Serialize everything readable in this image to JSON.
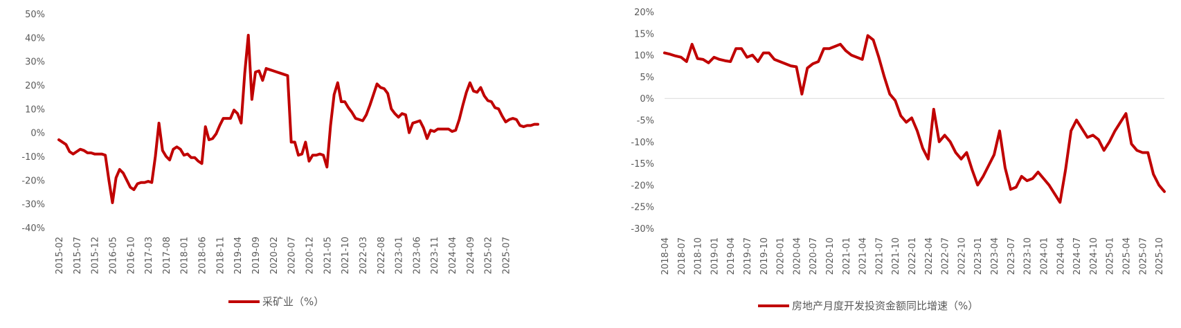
{
  "chart_data": [
    {
      "type": "line",
      "title": "",
      "xlabel": "",
      "ylabel": "",
      "ylim": [
        -40,
        50
      ],
      "ytick_labels": [
        "50%",
        "40%",
        "30%",
        "20%",
        "10%",
        "0%",
        "-10%",
        "-20%",
        "-30%",
        "-40%"
      ],
      "yticks": [
        50,
        40,
        30,
        20,
        10,
        0,
        -10,
        -20,
        -30,
        -40
      ],
      "xtick_labels": [
        "2015-02",
        "2015-07",
        "2015-12",
        "2016-05",
        "2016-10",
        "2017-03",
        "2017-08",
        "2018-01",
        "2018-06",
        "2018-11",
        "2019-04",
        "2019-09",
        "2020-02",
        "2020-07",
        "2020-12",
        "2021-05",
        "2021-10",
        "2022-03",
        "2022-08",
        "2023-01",
        "2023-06",
        "2023-11",
        "2024-04",
        "2024-09",
        "2025-02",
        "2025-07"
      ],
      "x_start": "2015-02",
      "x_end": "2025-10",
      "grid": false,
      "legend_position": "bottom",
      "color": "#C00000",
      "series": [
        {
          "name": "采矿业（%）",
          "points": [
            [
              "2015-02",
              -3
            ],
            [
              "2015-04",
              -5
            ],
            [
              "2015-05",
              -8
            ],
            [
              "2015-06",
              -9
            ],
            [
              "2015-07",
              -8
            ],
            [
              "2015-08",
              -7
            ],
            [
              "2015-09",
              -7.5
            ],
            [
              "2015-10",
              -8.5
            ],
            [
              "2015-11",
              -8.5
            ],
            [
              "2015-12",
              -9
            ],
            [
              "2016-02",
              -9
            ],
            [
              "2016-03",
              -9.5
            ],
            [
              "2016-04",
              -20
            ],
            [
              "2016-05",
              -29.5
            ],
            [
              "2016-06",
              -19
            ],
            [
              "2016-07",
              -15.5
            ],
            [
              "2016-08",
              -17
            ],
            [
              "2016-09",
              -20
            ],
            [
              "2016-10",
              -23
            ],
            [
              "2016-11",
              -24
            ],
            [
              "2016-12",
              -21.5
            ],
            [
              "2017-01",
              -21
            ],
            [
              "2017-02",
              -21
            ],
            [
              "2017-03",
              -20.5
            ],
            [
              "2017-04",
              -21
            ],
            [
              "2017-05",
              -10
            ],
            [
              "2017-06",
              4
            ],
            [
              "2017-07",
              -7.5
            ],
            [
              "2017-08",
              -10
            ],
            [
              "2017-09",
              -11.5
            ],
            [
              "2017-10",
              -7
            ],
            [
              "2017-11",
              -6
            ],
            [
              "2017-12",
              -7
            ],
            [
              "2018-01",
              -9.5
            ],
            [
              "2018-02",
              -9
            ],
            [
              "2018-03",
              -10.5
            ],
            [
              "2018-04",
              -10.5
            ],
            [
              "2018-05",
              -12
            ],
            [
              "2018-06",
              -13
            ],
            [
              "2018-07",
              2.5
            ],
            [
              "2018-08",
              -3
            ],
            [
              "2018-09",
              -2.5
            ],
            [
              "2018-10",
              -0.5
            ],
            [
              "2018-11",
              3
            ],
            [
              "2018-12",
              6
            ],
            [
              "2019-01",
              6
            ],
            [
              "2019-02",
              6
            ],
            [
              "2019-03",
              9.5
            ],
            [
              "2019-04",
              8
            ],
            [
              "2019-05",
              4
            ],
            [
              "2019-06",
              25
            ],
            [
              "2019-07",
              41
            ],
            [
              "2019-08",
              14
            ],
            [
              "2019-09",
              25.5
            ],
            [
              "2019-10",
              26
            ],
            [
              "2019-11",
              22
            ],
            [
              "2019-12",
              27
            ],
            [
              "2020-01",
              26.5
            ],
            [
              "2020-02",
              26
            ],
            [
              "2020-03",
              25.5
            ],
            [
              "2020-04",
              25
            ],
            [
              "2020-05",
              24.5
            ],
            [
              "2020-06",
              24
            ],
            [
              "2020-07",
              -4
            ],
            [
              "2020-08",
              -4
            ],
            [
              "2020-09",
              -9.5
            ],
            [
              "2020-10",
              -9
            ],
            [
              "2020-11",
              -4
            ],
            [
              "2020-12",
              -12
            ],
            [
              "2021-01",
              -9.5
            ],
            [
              "2021-02",
              -9.5
            ],
            [
              "2021-03",
              -9
            ],
            [
              "2021-04",
              -9.5
            ],
            [
              "2021-05",
              -14.5
            ],
            [
              "2021-06",
              3
            ],
            [
              "2021-07",
              16
            ],
            [
              "2021-08",
              21
            ],
            [
              "2021-09",
              13
            ],
            [
              "2021-10",
              13
            ],
            [
              "2021-11",
              10.5
            ],
            [
              "2021-12",
              8.5
            ],
            [
              "2022-01",
              6
            ],
            [
              "2022-02",
              5.5
            ],
            [
              "2022-03",
              5
            ],
            [
              "2022-04",
              7.5
            ],
            [
              "2022-05",
              11.5
            ],
            [
              "2022-06",
              16
            ],
            [
              "2022-07",
              20.5
            ],
            [
              "2022-08",
              19
            ],
            [
              "2022-09",
              18.5
            ],
            [
              "2022-10",
              16.5
            ],
            [
              "2022-11",
              10
            ],
            [
              "2022-12",
              8
            ],
            [
              "2023-01",
              6.5
            ],
            [
              "2023-02",
              8
            ],
            [
              "2023-03",
              7.5
            ],
            [
              "2023-04",
              0
            ],
            [
              "2023-05",
              4
            ],
            [
              "2023-06",
              4.5
            ],
            [
              "2023-07",
              5
            ],
            [
              "2023-08",
              2
            ],
            [
              "2023-09",
              -2.5
            ],
            [
              "2023-10",
              1
            ],
            [
              "2023-11",
              0.5
            ],
            [
              "2023-12",
              1.5
            ],
            [
              "2024-01",
              1.5
            ],
            [
              "2024-02",
              1.5
            ],
            [
              "2024-03",
              1.5
            ],
            [
              "2024-04",
              0.5
            ],
            [
              "2024-05",
              1
            ],
            [
              "2024-06",
              5.5
            ],
            [
              "2024-07",
              11.5
            ],
            [
              "2024-08",
              17
            ],
            [
              "2024-09",
              21
            ],
            [
              "2024-10",
              17.5
            ],
            [
              "2024-11",
              17
            ],
            [
              "2024-12",
              19
            ],
            [
              "2025-01",
              15.5
            ],
            [
              "2025-02",
              13.5
            ],
            [
              "2025-03",
              13
            ],
            [
              "2025-04",
              10.5
            ],
            [
              "2025-05",
              10
            ],
            [
              "2025-06",
              7
            ],
            [
              "2025-07",
              4.5
            ],
            [
              "2025-08",
              5.5
            ],
            [
              "2025-09",
              6
            ],
            [
              "2025-10",
              5.5
            ],
            [
              "2025-11",
              3
            ],
            [
              "2025-12",
              2.5
            ],
            [
              "2026-01",
              3
            ],
            [
              "2026-02",
              3
            ],
            [
              "2026-03",
              3.5
            ],
            [
              "2026-04",
              3.5
            ]
          ]
        }
      ]
    },
    {
      "type": "line",
      "title": "",
      "xlabel": "",
      "ylabel": "",
      "ylim": [
        -30,
        20
      ],
      "ytick_labels": [
        "20%",
        "15%",
        "10%",
        "5%",
        "0%",
        "-5%",
        "-10%",
        "-15%",
        "-20%",
        "-25%",
        "-30%"
      ],
      "yticks": [
        20,
        15,
        10,
        5,
        0,
        -5,
        -10,
        -15,
        -20,
        -25,
        -30
      ],
      "xtick_labels": [
        "2018-04",
        "2018-07",
        "2018-10",
        "2019-01",
        "2019-04",
        "2019-07",
        "2019-10",
        "2020-01",
        "2020-04",
        "2020-07",
        "2020-10",
        "2021-01",
        "2021-04",
        "2021-07",
        "2021-10",
        "2022-01",
        "2022-04",
        "2022-07",
        "2022-10",
        "2023-01",
        "2023-04",
        "2023-07",
        "2023-10",
        "2024-01",
        "2024-04",
        "2024-07",
        "2024-10",
        "2025-01",
        "2025-04",
        "2025-07",
        "2025-10"
      ],
      "x_start": "2018-04",
      "x_end": "2025-10",
      "grid": false,
      "zero_line": true,
      "legend_position": "bottom",
      "color": "#C00000",
      "series": [
        {
          "name": "房地产月度开发投资金额同比增速（%）",
          "points": [
            [
              "2018-04",
              10.5
            ],
            [
              "2018-05",
              10.2
            ],
            [
              "2018-06",
              9.8
            ],
            [
              "2018-07",
              9.5
            ],
            [
              "2018-08",
              8.5
            ],
            [
              "2018-09",
              12.5
            ],
            [
              "2018-10",
              9.2
            ],
            [
              "2018-11",
              9
            ],
            [
              "2018-12",
              8.2
            ],
            [
              "2019-01",
              9.5
            ],
            [
              "2019-02",
              9
            ],
            [
              "2019-03",
              8.7
            ],
            [
              "2019-04",
              8.5
            ],
            [
              "2019-05",
              11.5
            ],
            [
              "2019-06",
              11.5
            ],
            [
              "2019-07",
              9.5
            ],
            [
              "2019-08",
              10
            ],
            [
              "2019-09",
              8.5
            ],
            [
              "2019-10",
              10.5
            ],
            [
              "2019-11",
              10.5
            ],
            [
              "2019-12",
              9
            ],
            [
              "2020-01",
              8.5
            ],
            [
              "2020-02",
              8
            ],
            [
              "2020-03",
              7.5
            ],
            [
              "2020-04",
              7.3
            ],
            [
              "2020-05",
              1
            ],
            [
              "2020-06",
              7
            ],
            [
              "2020-07",
              8
            ],
            [
              "2020-08",
              8.5
            ],
            [
              "2020-09",
              11.5
            ],
            [
              "2020-10",
              11.5
            ],
            [
              "2020-11",
              12
            ],
            [
              "2020-12",
              12.5
            ],
            [
              "2021-01",
              11
            ],
            [
              "2021-02",
              10
            ],
            [
              "2021-03",
              9.5
            ],
            [
              "2021-04",
              9
            ],
            [
              "2021-05",
              14.5
            ],
            [
              "2021-06",
              13.5
            ],
            [
              "2021-07",
              9.5
            ],
            [
              "2021-08",
              5
            ],
            [
              "2021-09",
              1
            ],
            [
              "2021-10",
              -0.5
            ],
            [
              "2021-11",
              -4
            ],
            [
              "2021-12",
              -5.5
            ],
            [
              "2022-01",
              -4.5
            ],
            [
              "2022-02",
              -7.5
            ],
            [
              "2022-03",
              -11.5
            ],
            [
              "2022-04",
              -14
            ],
            [
              "2022-05",
              -2.5
            ],
            [
              "2022-06",
              -10
            ],
            [
              "2022-07",
              -8.5
            ],
            [
              "2022-08",
              -10
            ],
            [
              "2022-09",
              -12.5
            ],
            [
              "2022-10",
              -14
            ],
            [
              "2022-11",
              -12.5
            ],
            [
              "2022-12",
              -16.5
            ],
            [
              "2023-01",
              -20
            ],
            [
              "2023-02",
              -18
            ],
            [
              "2023-03",
              -15.5
            ],
            [
              "2023-04",
              -13
            ],
            [
              "2023-05",
              -7.5
            ],
            [
              "2023-06",
              -16
            ],
            [
              "2023-07",
              -21
            ],
            [
              "2023-08",
              -20.5
            ],
            [
              "2023-09",
              -18
            ],
            [
              "2023-10",
              -19
            ],
            [
              "2023-11",
              -18.5
            ],
            [
              "2023-12",
              -17
            ],
            [
              "2024-01",
              -18.5
            ],
            [
              "2024-02",
              -20
            ],
            [
              "2024-03",
              -22
            ],
            [
              "2024-04",
              -24
            ],
            [
              "2024-05",
              -16.5
            ],
            [
              "2024-06",
              -7.5
            ],
            [
              "2024-07",
              -5
            ],
            [
              "2024-08",
              -7
            ],
            [
              "2024-09",
              -9
            ],
            [
              "2024-10",
              -8.5
            ],
            [
              "2024-11",
              -9.5
            ],
            [
              "2024-12",
              -12
            ],
            [
              "2025-01",
              -10
            ],
            [
              "2025-02",
              -7.5
            ],
            [
              "2025-03",
              -5.5
            ],
            [
              "2025-04",
              -3.5
            ],
            [
              "2025-05",
              -10.5
            ],
            [
              "2025-06",
              -12
            ],
            [
              "2025-07",
              -12.5
            ],
            [
              "2025-08",
              -12.5
            ],
            [
              "2025-09",
              -17.5
            ],
            [
              "2025-10",
              -20
            ],
            [
              "2025-11",
              -21.5
            ]
          ]
        }
      ]
    }
  ]
}
